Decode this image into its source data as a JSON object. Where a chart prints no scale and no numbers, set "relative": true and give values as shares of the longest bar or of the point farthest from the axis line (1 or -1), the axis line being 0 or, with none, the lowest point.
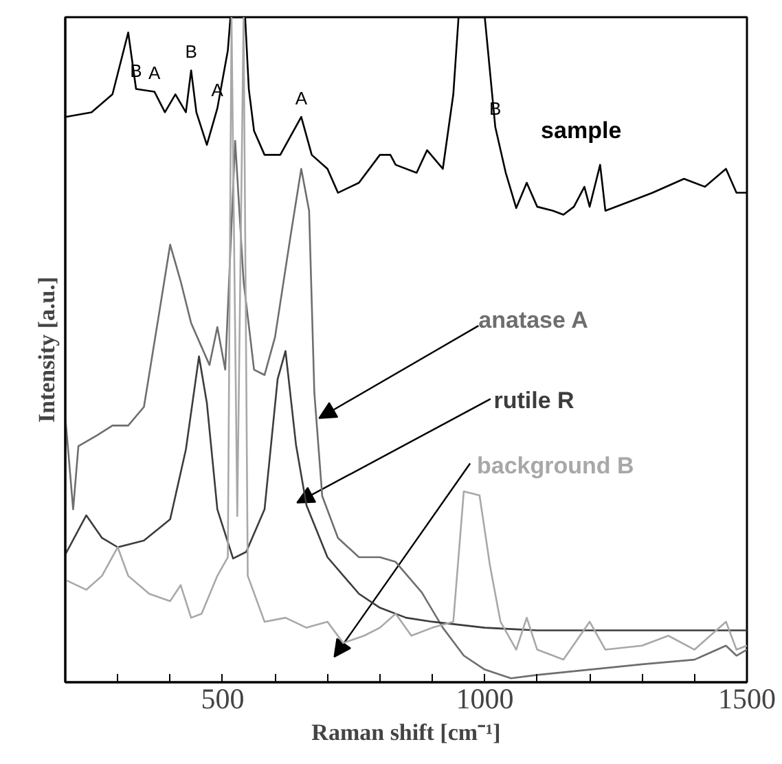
{
  "chart_data": {
    "type": "line",
    "relative": true,
    "xlabel": "Raman shift [cm⁻¹]",
    "ylabel": "Intensity [a.u.]",
    "tick_labels": "x",
    "xlim": [
      200,
      1500
    ],
    "xticks": [
      {
        "value": 300,
        "label": null
      },
      {
        "value": 400,
        "label": null
      },
      500,
      {
        "value": 600,
        "label": null
      },
      {
        "value": 700,
        "label": null
      },
      {
        "value": 800,
        "label": null
      },
      {
        "value": 900,
        "label": null
      },
      1000,
      {
        "value": 1100,
        "label": null
      },
      {
        "value": 1200,
        "label": null
      },
      {
        "value": 1300,
        "label": null
      },
      {
        "value": 1400,
        "label": null
      },
      1500
    ],
    "series": [
      {
        "name": "sample",
        "color": "#000000",
        "x": [
          200,
          250,
          290,
          320,
          335,
          370,
          390,
          410,
          430,
          440,
          450,
          470,
          490,
          510,
          515,
          543,
          550,
          560,
          580,
          610,
          650,
          670,
          700,
          720,
          760,
          800,
          820,
          830,
          870,
          890,
          920,
          940,
          950,
          1000,
          1020,
          1040,
          1060,
          1080,
          1100,
          1130,
          1150,
          1170,
          1190,
          1200,
          1220,
          1230,
          1280,
          1320,
          1380,
          1420,
          1460,
          1480,
          1500
        ],
        "values": [
          0.85,
          0.857,
          0.884,
          0.977,
          0.892,
          0.888,
          0.857,
          0.884,
          0.857,
          0.92,
          0.857,
          0.808,
          0.863,
          0.95,
          1,
          1,
          0.892,
          0.829,
          0.793,
          0.793,
          0.85,
          0.793,
          0.772,
          0.736,
          0.751,
          0.793,
          0.793,
          0.778,
          0.766,
          0.8,
          0.772,
          0.884,
          1,
          1,
          0.835,
          0.766,
          0.713,
          0.751,
          0.715,
          0.709,
          0.703,
          0.715,
          0.745,
          0.715,
          0.778,
          0.709,
          0.724,
          0.736,
          0.757,
          0.745,
          0.772,
          0.736,
          0.736
        ]
      },
      {
        "name": "anatase A",
        "color": "#6e6e6e",
        "x": [
          200,
          215,
          225,
          260,
          290,
          320,
          350,
          380,
          400,
          420,
          440,
          460,
          475,
          490,
          505,
          524,
          540,
          560,
          580,
          600,
          630,
          650,
          665,
          675,
          690,
          720,
          760,
          800,
          830,
          880,
          920,
          960,
          1000,
          1050,
          1100,
          1200,
          1300,
          1400,
          1460,
          1480,
          1500
        ],
        "values": [
          0.4,
          0.26,
          0.355,
          0.371,
          0.386,
          0.386,
          0.414,
          0.56,
          0.658,
          0.603,
          0.54,
          0.504,
          0.477,
          0.534,
          0.47,
          0.814,
          0.603,
          0.47,
          0.462,
          0.519,
          0.673,
          0.772,
          0.709,
          0.435,
          0.28,
          0.217,
          0.188,
          0.188,
          0.181,
          0.135,
          0.082,
          0.04,
          0.019,
          0.006,
          0.011,
          0.019,
          0.027,
          0.034,
          0.055,
          0.04,
          0.049
        ]
      },
      {
        "name": "rutile R",
        "color": "#3c3c3c",
        "x": [
          200,
          240,
          270,
          300,
          350,
          400,
          430,
          455,
          470,
          490,
          520,
          545,
          580,
          605,
          620,
          640,
          660,
          700,
          760,
          800,
          850,
          900,
          1000,
          1100,
          1500
        ],
        "values": [
          0.192,
          0.251,
          0.217,
          0.203,
          0.213,
          0.245,
          0.35,
          0.49,
          0.42,
          0.26,
          0.186,
          0.196,
          0.26,
          0.456,
          0.498,
          0.357,
          0.266,
          0.188,
          0.133,
          0.112,
          0.097,
          0.091,
          0.082,
          0.078,
          0.078
        ]
      },
      {
        "name": "background B",
        "color": "#a8a8a8",
        "x": [
          200,
          240,
          270,
          300,
          320,
          360,
          400,
          420,
          440,
          460,
          490,
          510,
          517,
          528,
          540,
          548,
          580,
          620,
          660,
          700,
          730,
          770,
          800,
          830,
          860,
          900,
          940,
          960,
          990,
          1010,
          1030,
          1060,
          1080,
          1100,
          1150,
          1200,
          1230,
          1300,
          1350,
          1400,
          1460,
          1480,
          1500
        ],
        "values": [
          0.154,
          0.139,
          0.16,
          0.203,
          0.16,
          0.133,
          0.122,
          0.146,
          0.097,
          0.103,
          0.16,
          0.188,
          1,
          0.25,
          1,
          0.16,
          0.091,
          0.097,
          0.082,
          0.091,
          0.059,
          0.07,
          0.082,
          0.103,
          0.07,
          0.082,
          0.091,
          0.287,
          0.281,
          0.175,
          0.091,
          0.049,
          0.097,
          0.049,
          0.034,
          0.091,
          0.049,
          0.055,
          0.07,
          0.049,
          0.091,
          0.049,
          0.055
        ]
      }
    ],
    "annotations": [
      {
        "text": "B",
        "x": 335,
        "y": 0.892
      },
      {
        "text": "A",
        "x": 370,
        "y": 0.888
      },
      {
        "text": "B",
        "x": 440,
        "y": 0.92
      },
      {
        "text": "A",
        "x": 490,
        "y": 0.863
      },
      {
        "text": "A",
        "x": 650,
        "y": 0.85
      },
      {
        "text": "B",
        "x": 1020,
        "y": 0.835
      }
    ]
  }
}
